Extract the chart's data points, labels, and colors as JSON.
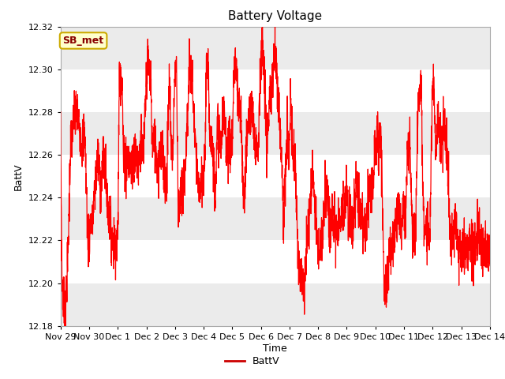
{
  "title": "Battery Voltage",
  "xlabel": "Time",
  "ylabel": "BattV",
  "legend_label": "BattV",
  "line_color": "#ff0000",
  "legend_line_color": "#cc0000",
  "ylim": [
    12.18,
    12.32
  ],
  "yticks": [
    12.18,
    12.2,
    12.22,
    12.24,
    12.26,
    12.28,
    12.3,
    12.32
  ],
  "bg_color": "#ffffff",
  "plot_bg_color": "#ffffff",
  "band_light": "#ebebeb",
  "band_white": "#ffffff",
  "annotation_text": "SB_met",
  "annotation_bg": "#ffffcc",
  "annotation_border": "#ccaa00",
  "annotation_text_color": "#880000",
  "xtick_labels": [
    "Nov 29",
    "Nov 30",
    "Dec 1",
    "Dec 2",
    "Dec 3",
    "Dec 4",
    "Dec 5",
    "Dec 6",
    "Dec 7",
    "Dec 8",
    "Dec 9",
    "Dec 10",
    "Dec 11",
    "Dec 12",
    "Dec 13",
    "Dec 14"
  ],
  "xtick_positions": [
    0,
    1,
    2,
    3,
    4,
    5,
    6,
    7,
    8,
    9,
    10,
    11,
    12,
    13,
    14,
    15
  ]
}
